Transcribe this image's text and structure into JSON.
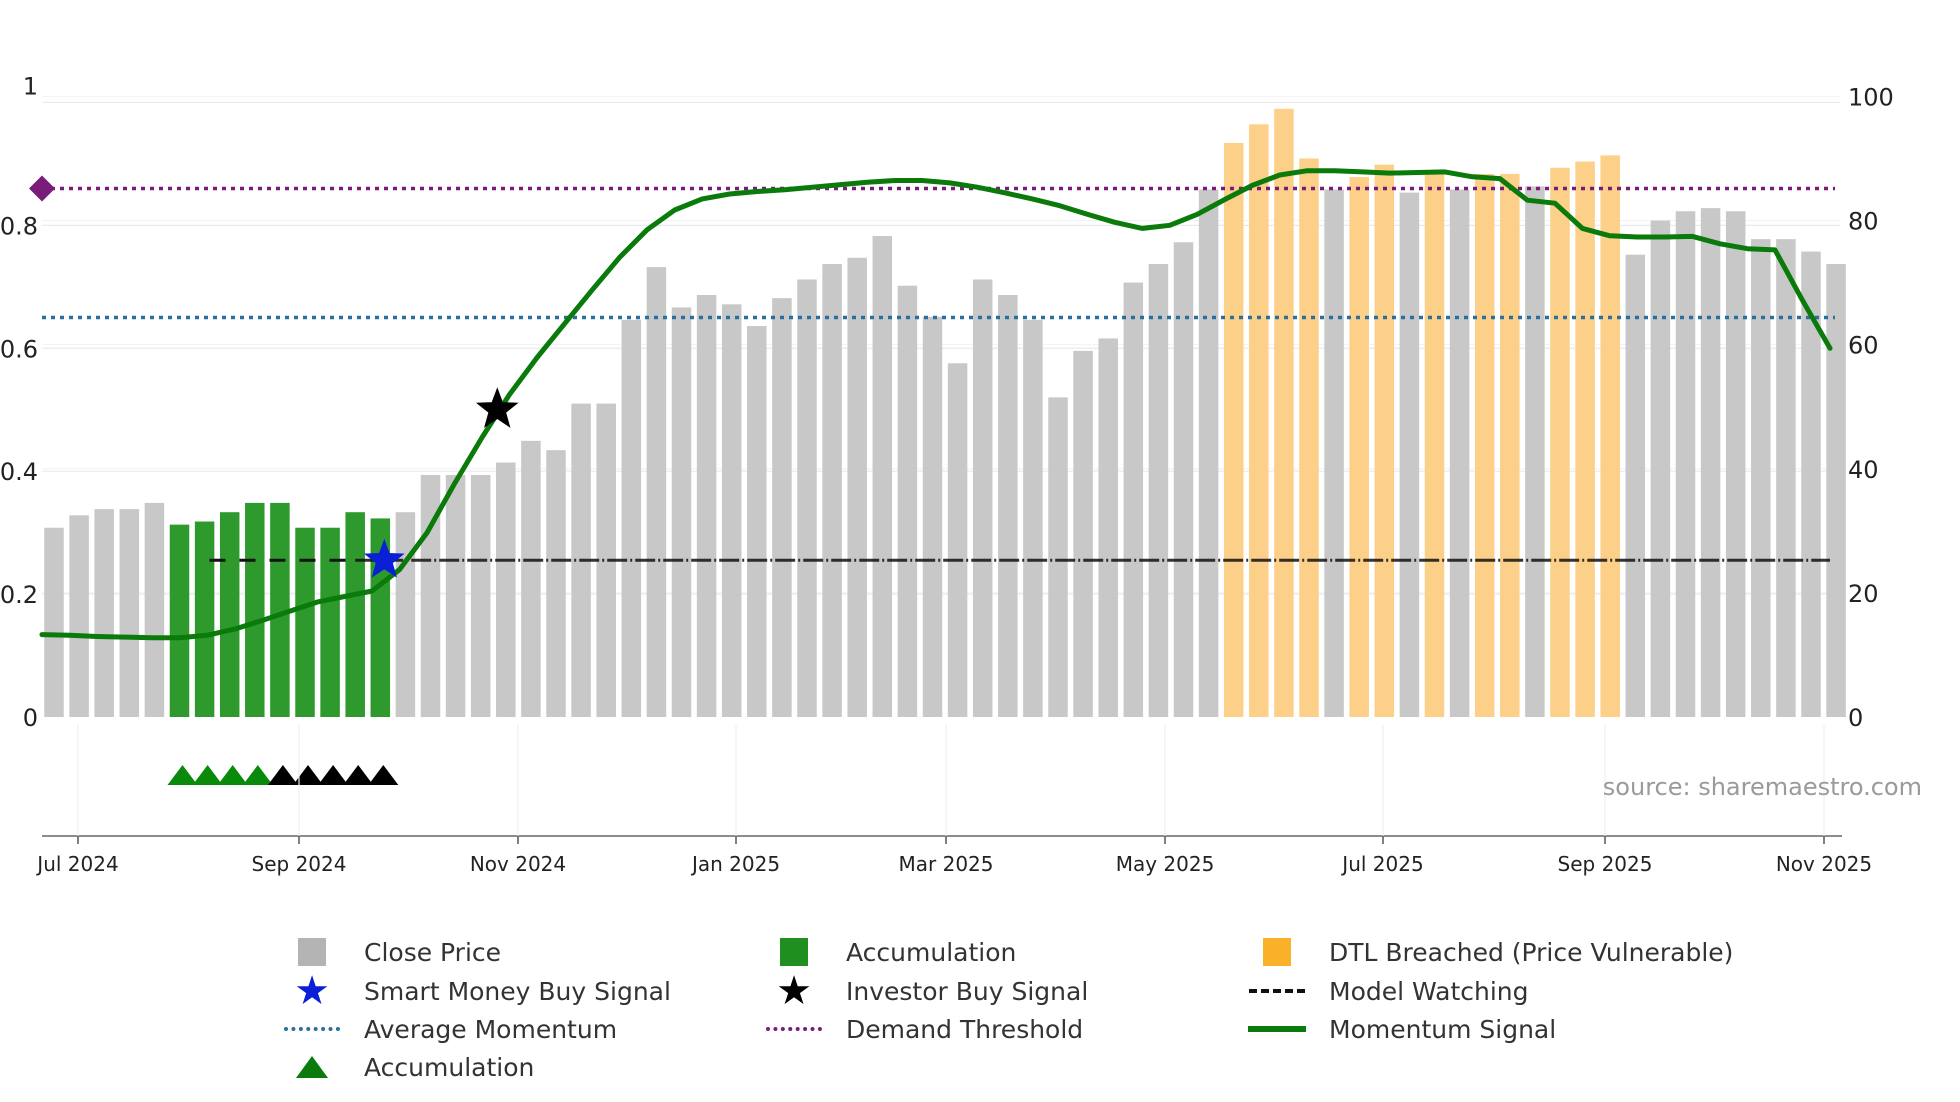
{
  "chart_data": {
    "type": "bar",
    "source": "source: sharemaestro.com",
    "x_ticks": [
      "Jul 2024",
      "Sep 2024",
      "Nov 2024",
      "Jan 2025",
      "Mar 2025",
      "May 2025",
      "Jul 2025",
      "Sep 2025",
      "Nov 2025"
    ],
    "y_left": {
      "ticks": [
        "0",
        "0.2",
        "0.4",
        "0.6",
        "0.8",
        "1"
      ],
      "ylim": [
        0,
        1
      ]
    },
    "y_right": {
      "ticks": [
        "0",
        "20",
        "40",
        "60",
        "80",
        "100"
      ],
      "ylim": [
        0,
        100
      ]
    },
    "close_price": {
      "name": "Close Price",
      "values": [
        30.5,
        32.5,
        33.5,
        33.5,
        34.5,
        31,
        31.5,
        33,
        34.5,
        34.5,
        30.5,
        30.5,
        33,
        32,
        33,
        39,
        39,
        39,
        41,
        44.5,
        43,
        50.5,
        50.5,
        64,
        72.5,
        66,
        68,
        66.5,
        63,
        67.5,
        70.5,
        73,
        74,
        77.5,
        69.5,
        64.5,
        57,
        70.5,
        68,
        64,
        51.5,
        59,
        61,
        70,
        73,
        76.5,
        85,
        92.5,
        95.5,
        98,
        90,
        85,
        87,
        89,
        84.5,
        87.5,
        85,
        87.5,
        87.5,
        85.5,
        88.5,
        89.5,
        90.5,
        74.5,
        80,
        81.5,
        82,
        81.5,
        77,
        77,
        75,
        73
      ],
      "categories": [
        "Close Price",
        "Close Price",
        "Close Price",
        "Close Price",
        "Close Price",
        "Accumulation",
        "Accumulation",
        "Accumulation",
        "Accumulation",
        "Accumulation",
        "Accumulation",
        "Accumulation",
        "Accumulation",
        "Accumulation",
        "Close Price",
        "Close Price",
        "Close Price",
        "Close Price",
        "Close Price",
        "Close Price",
        "Close Price",
        "Close Price",
        "Close Price",
        "Close Price",
        "Close Price",
        "Close Price",
        "Close Price",
        "Close Price",
        "Close Price",
        "Close Price",
        "Close Price",
        "Close Price",
        "Close Price",
        "Close Price",
        "Close Price",
        "Close Price",
        "Close Price",
        "Close Price",
        "Close Price",
        "Close Price",
        "Close Price",
        "Close Price",
        "Close Price",
        "Close Price",
        "Close Price",
        "Close Price",
        "Close Price",
        "DTL Breached (Price Vulnerable)",
        "DTL Breached (Price Vulnerable)",
        "DTL Breached (Price Vulnerable)",
        "DTL Breached (Price Vulnerable)",
        "Close Price",
        "DTL Breached (Price Vulnerable)",
        "DTL Breached (Price Vulnerable)",
        "Close Price",
        "DTL Breached (Price Vulnerable)",
        "Close Price",
        "DTL Breached (Price Vulnerable)",
        "DTL Breached (Price Vulnerable)",
        "Close Price",
        "DTL Breached (Price Vulnerable)",
        "DTL Breached (Price Vulnerable)",
        "DTL Breached (Price Vulnerable)",
        "Close Price",
        "Close Price",
        "Close Price",
        "Close Price",
        "Close Price",
        "Close Price",
        "Close Price",
        "Close Price",
        "Close Price"
      ]
    },
    "momentum_signal": {
      "name": "Momentum Signal",
      "values": [
        0.134,
        0.133,
        0.131,
        0.13,
        0.129,
        0.129,
        0.133,
        0.143,
        0.157,
        0.172,
        0.187,
        0.196,
        0.205,
        0.24,
        0.3,
        0.38,
        0.455,
        0.525,
        0.585,
        0.64,
        0.695,
        0.748,
        0.793,
        0.825,
        0.843,
        0.851,
        0.855,
        0.858,
        0.862,
        0.866,
        0.87,
        0.873,
        0.873,
        0.869,
        0.862,
        0.853,
        0.843,
        0.832,
        0.818,
        0.805,
        0.795,
        0.8,
        0.818,
        0.842,
        0.865,
        0.882,
        0.889,
        0.889,
        0.887,
        0.885,
        0.886,
        0.887,
        0.879,
        0.876,
        0.841,
        0.836,
        0.795,
        0.783,
        0.781,
        0.781,
        0.782,
        0.77,
        0.762,
        0.76,
        0.678,
        0.6
      ]
    },
    "average_momentum": {
      "name": "Average Momentum",
      "value": 0.65
    },
    "demand_threshold": {
      "name": "Demand Threshold",
      "value": 0.86
    },
    "model_watching": {
      "name": "Model Watching",
      "value": 0.255
    },
    "smart_money_buy": {
      "name": "Smart Money Buy Signal",
      "date_index": 13,
      "value": 0.255
    },
    "investor_buy": {
      "name": "Investor Buy Signal",
      "date_index": 17.5,
      "value": 0.5
    },
    "accumulation_markers": {
      "name": "Accumulation",
      "green": [
        5,
        6,
        7,
        8
      ],
      "black": [
        9,
        10,
        11,
        12,
        13
      ]
    },
    "demand_marker": {
      "value": 0.86
    }
  },
  "legend": {
    "close_price": "Close Price",
    "accumulation_bar": "Accumulation",
    "dtl_breached": "DTL Breached (Price Vulnerable)",
    "smart_money": "Smart Money Buy Signal",
    "investor_buy": "Investor Buy Signal",
    "model_watching": "Model Watching",
    "average_momentum": "Average Momentum",
    "demand_threshold": "Demand Threshold",
    "momentum_signal": "Momentum Signal",
    "accumulation_marker": "Accumulation"
  },
  "colors": {
    "close_price": "#c8c8c8",
    "accumulation": "#2e9a2e",
    "dtl": "#fcd089",
    "momentum": "#0a7a0a",
    "average": "#2b6f9c",
    "demand": "#7a1d7a",
    "watch": "#111111",
    "smart": "#0a1fd6",
    "investor": "#000000"
  }
}
